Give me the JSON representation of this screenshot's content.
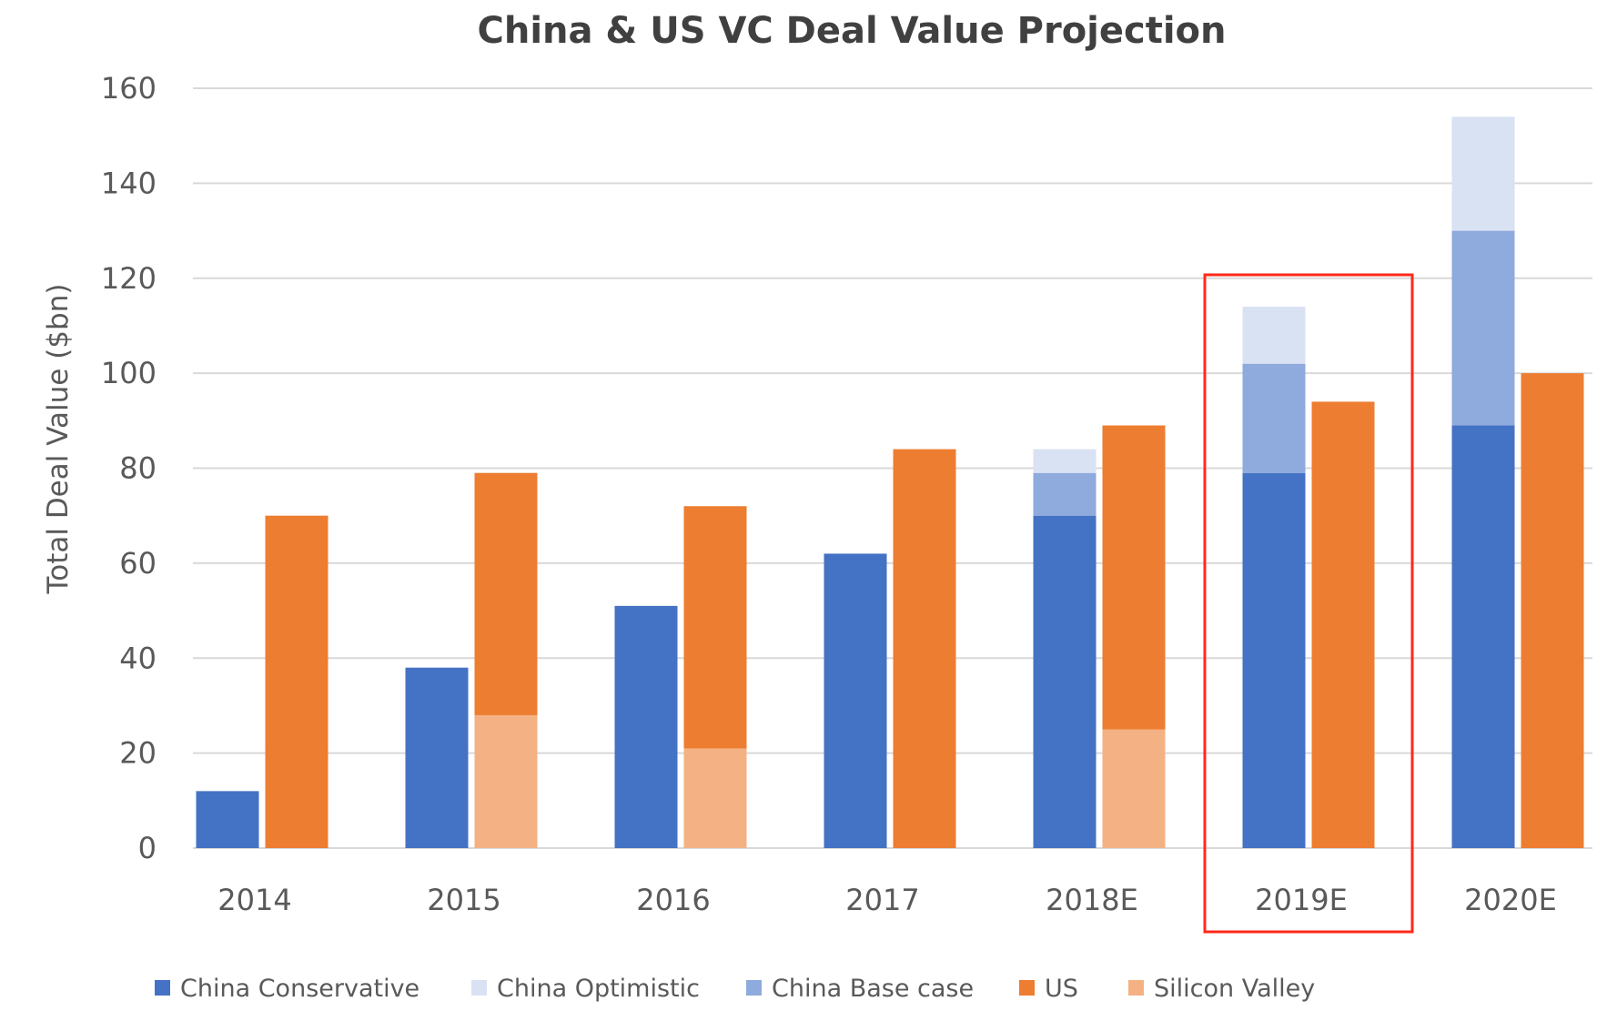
{
  "chart_data": {
    "type": "bar",
    "title": "China & US VC Deal Value Projection",
    "xlabel": "",
    "ylabel": "Total Deal Value ($bn)",
    "ylim": [
      0,
      160
    ],
    "yticks": [
      0,
      20,
      40,
      60,
      80,
      100,
      120,
      140,
      160
    ],
    "grid": true,
    "legend_position": "bottom",
    "categories": [
      "2014",
      "2015",
      "2016",
      "2017",
      "2018E",
      "2019E",
      "2020E"
    ],
    "highlight": {
      "category": "2019E",
      "color": "#ff2a1a"
    },
    "series": [
      {
        "name": "China Conservative",
        "color": "#4472c4",
        "stack": "China",
        "values": [
          12,
          38,
          51,
          62,
          70,
          79,
          89
        ]
      },
      {
        "name": "China Optimistic",
        "color": "#d9e2f3",
        "stack": "China",
        "values": [
          0,
          0,
          0,
          0,
          5,
          12,
          24
        ]
      },
      {
        "name": "China Base case",
        "color": "#8faadc",
        "stack": "China",
        "values": [
          0,
          0,
          0,
          0,
          9,
          23,
          41
        ]
      },
      {
        "name": "US",
        "color": "#ed7d31",
        "stack": "US",
        "values": [
          70,
          79,
          72,
          84,
          89,
          94,
          100
        ]
      },
      {
        "name": "Silicon Valley",
        "color": "#f4b183",
        "stack": "US",
        "values": [
          0,
          28,
          21,
          0,
          25,
          0,
          0
        ]
      }
    ]
  }
}
